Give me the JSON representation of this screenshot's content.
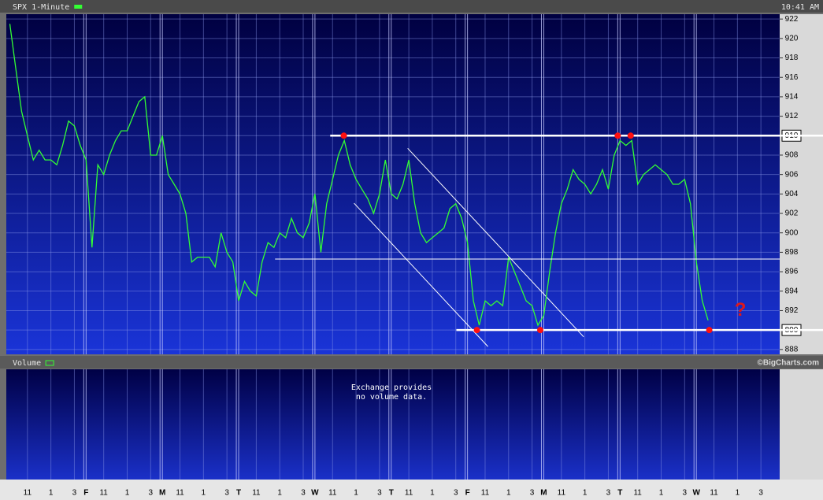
{
  "chart_data": {
    "type": "line",
    "timestamp": "10:41 AM",
    "credit": "©BigCharts.com",
    "series": [
      {
        "name": "SPX 1-Minute",
        "color": "#33ff33",
        "values": [
          921.5,
          917,
          912.5,
          910,
          907.5,
          908.5,
          907.5,
          907.5,
          907,
          909,
          911.5,
          911,
          909,
          907.5,
          898.5,
          907,
          906,
          908,
          909.5,
          910.5,
          910.5,
          912,
          913.5,
          914,
          908,
          908,
          910,
          906,
          905,
          904,
          902,
          897,
          897.5,
          897.5,
          897.5,
          896.5,
          900,
          898,
          897,
          893,
          895,
          894,
          893.5,
          897,
          899,
          898.5,
          900,
          899.5,
          901.5,
          900,
          899.5,
          901,
          904,
          898,
          903,
          905.5,
          908,
          909.5,
          907,
          905.5,
          904.5,
          903.5,
          902,
          904,
          907.5,
          904,
          903.5,
          905,
          907.5,
          903,
          900,
          899,
          899.5,
          900,
          900.5,
          902.5,
          903,
          901.5,
          899,
          893,
          890.5,
          893,
          892.5,
          893,
          892.5,
          897.5,
          896,
          894.5,
          893,
          892.5,
          890.5,
          891.5,
          896,
          900,
          903,
          904.5,
          906.5,
          905.5,
          905,
          904,
          905,
          906.5,
          904.5,
          908,
          909.5,
          909,
          909.5,
          905,
          906,
          906.5,
          907,
          906.5,
          906,
          905,
          905,
          905.5,
          903,
          897,
          893,
          891
        ]
      }
    ],
    "x": [
      0,
      0.5,
      1,
      1.5,
      2,
      2.5,
      3,
      3.5,
      4,
      4.5,
      5,
      5.5,
      6,
      6.5,
      7,
      7.5,
      8,
      8.5,
      9,
      9.5,
      10,
      10.5,
      11,
      11.5,
      12,
      12.5,
      13,
      13.5,
      14,
      14.5,
      15,
      15.5,
      16,
      16.5,
      17,
      17.5,
      18,
      18.5,
      19,
      19.5,
      20,
      20.5,
      21,
      21.5,
      22,
      22.5,
      23,
      23.5,
      24,
      24.5,
      25,
      25.5,
      26,
      26.5,
      27,
      27.5,
      28,
      28.5,
      29,
      29.5,
      30,
      30.5,
      31,
      31.5,
      32,
      32.5,
      33,
      33.5,
      34,
      34.5,
      35,
      35.5,
      36,
      36.5,
      37,
      37.5,
      38,
      38.5,
      39,
      39.5,
      40,
      40.5,
      41,
      41.5,
      42,
      42.5,
      43,
      43.5,
      44,
      44.5,
      45,
      45.5,
      46,
      46.5,
      47,
      47.5,
      48,
      48.5,
      49,
      49.5,
      50,
      50.5,
      51,
      51.5,
      52,
      52.5,
      53,
      53.5,
      54,
      54.5,
      55,
      55.5,
      56,
      56.5,
      57,
      57.5,
      58,
      58.5,
      59,
      59.5
    ],
    "xlim": [
      -0.3,
      65.6
    ],
    "ylim": [
      887.5,
      922.5
    ],
    "yticks": [
      888,
      890,
      892,
      894,
      896,
      898,
      900,
      902,
      904,
      906,
      908,
      910,
      912,
      914,
      916,
      918,
      920,
      922
    ],
    "xticks": [
      {
        "value": 1.5,
        "label": "11"
      },
      {
        "value": 3.5,
        "label": "1"
      },
      {
        "value": 5.5,
        "label": "3"
      },
      {
        "value": 6.5,
        "label": "F"
      },
      {
        "value": 8,
        "label": "11"
      },
      {
        "value": 10,
        "label": "1"
      },
      {
        "value": 12,
        "label": "3"
      },
      {
        "value": 13,
        "label": "M"
      },
      {
        "value": 14.5,
        "label": "11"
      },
      {
        "value": 16.5,
        "label": "1"
      },
      {
        "value": 18.5,
        "label": "3"
      },
      {
        "value": 19.5,
        "label": "T"
      },
      {
        "value": 21,
        "label": "11"
      },
      {
        "value": 23,
        "label": "1"
      },
      {
        "value": 25,
        "label": "3"
      },
      {
        "value": 26,
        "label": "W"
      },
      {
        "value": 27.5,
        "label": "11"
      },
      {
        "value": 29.5,
        "label": "1"
      },
      {
        "value": 31.5,
        "label": "3"
      },
      {
        "value": 32.5,
        "label": "T"
      },
      {
        "value": 34,
        "label": "11"
      },
      {
        "value": 36,
        "label": "1"
      },
      {
        "value": 38,
        "label": "3"
      },
      {
        "value": 39,
        "label": "F"
      },
      {
        "value": 40.5,
        "label": "11"
      },
      {
        "value": 42.5,
        "label": "1"
      },
      {
        "value": 44.5,
        "label": "3"
      },
      {
        "value": 45.5,
        "label": "M"
      },
      {
        "value": 47,
        "label": "11"
      },
      {
        "value": 49,
        "label": "1"
      },
      {
        "value": 51,
        "label": "3"
      },
      {
        "value": 52,
        "label": "T"
      },
      {
        "value": 53.5,
        "label": "11"
      },
      {
        "value": 55.5,
        "label": "1"
      },
      {
        "value": 57.5,
        "label": "3"
      },
      {
        "value": 58.5,
        "label": "W"
      },
      {
        "value": 60,
        "label": "11"
      },
      {
        "value": 62,
        "label": "1"
      },
      {
        "value": 64,
        "label": "3"
      }
    ],
    "grid": true,
    "hlines": [
      {
        "y": 910,
        "from": 27.3,
        "width": 2.5
      },
      {
        "y": 890,
        "from": 38.05,
        "width": 2.5
      },
      {
        "y": 897.3,
        "from": 22.6,
        "width": 1
      }
    ],
    "trendlines": [
      {
        "x": [
          29.33,
          40.74
        ],
        "y": [
          903.05,
          888.3
        ]
      },
      {
        "x": [
          33.9,
          48.9
        ],
        "y": [
          908.7,
          889.3
        ]
      }
    ],
    "markers": {
      "color": "#ff1010",
      "x": [
        28.46,
        51.8,
        52.9,
        39.8,
        45.2,
        59.6
      ],
      "y": [
        910,
        910,
        910,
        890,
        890,
        890
      ]
    },
    "annotations": [
      {
        "text": "?",
        "x": 62.25,
        "y": 892,
        "color": "#e01818"
      }
    ],
    "volume_panel": {
      "title": "Volume",
      "message": [
        "Exchange provides",
        "no volume data."
      ]
    }
  }
}
